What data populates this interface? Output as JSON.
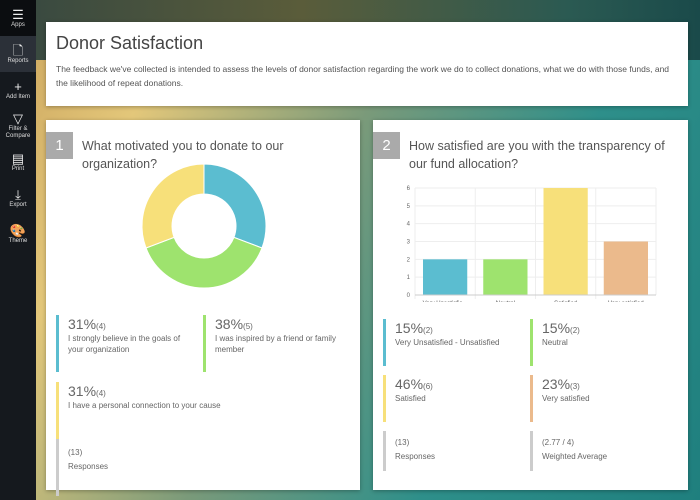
{
  "sidebar": {
    "items": [
      {
        "label": "Apps",
        "icon": "list-icon"
      },
      {
        "label": "Reports",
        "icon": "document-icon"
      },
      {
        "label": "Add Item",
        "icon": "plus-icon"
      },
      {
        "label": "Filter & Compare",
        "icon": "filter-icon"
      },
      {
        "label": "Print",
        "icon": "printer-icon"
      },
      {
        "label": "Export",
        "icon": "download-icon"
      },
      {
        "label": "Theme",
        "icon": "palette-icon"
      }
    ]
  },
  "header": {
    "title": "Donor Satisfaction",
    "description": "The feedback we've collected is intended to assess the levels of donor satisfaction regarding the work we do to collect donations, what we do with those funds, and the likelihood of repeat donations."
  },
  "q1": {
    "number": "1",
    "question": "What motivated you to donate to our organization?",
    "stats": [
      {
        "pct": "31%",
        "count": "(4)",
        "label": "I strongly believe in the goals of your organization",
        "color": "#5bbdd0"
      },
      {
        "pct": "38%",
        "count": "(5)",
        "label": "I was inspired by a friend or family member",
        "color": "#9ee36e"
      },
      {
        "pct": "31%",
        "count": "(4)",
        "label": "I have a personal connection to your cause",
        "color": "#f7e07a"
      }
    ],
    "responses": {
      "count": "(13)",
      "label": "Responses"
    }
  },
  "q2": {
    "number": "2",
    "question": "How satisfied are you with the transparency of our fund allocation?",
    "stats": [
      {
        "pct": "15%",
        "count": "(2)",
        "label": "Very Unsatisfied - Unsatisfied",
        "color": "#5bbdd0"
      },
      {
        "pct": "15%",
        "count": "(2)",
        "label": "Neutral",
        "color": "#9ee36e"
      },
      {
        "pct": "46%",
        "count": "(6)",
        "label": "Satisfied",
        "color": "#f7e07a"
      },
      {
        "pct": "23%",
        "count": "(3)",
        "label": "Very satisfied",
        "color": "#ebba8c"
      }
    ],
    "responses": {
      "count": "(13)",
      "label": "Responses"
    },
    "weighted": {
      "value": "(2.77 / 4)",
      "label": "Weighted Average"
    }
  },
  "chart_data": [
    {
      "type": "pie",
      "donut": true,
      "categories": [
        "I strongly believe in the goals of your organization",
        "I was inspired by a friend or family member",
        "I have a personal connection to your cause"
      ],
      "values": [
        4,
        5,
        4
      ],
      "colors": [
        "#5bbdd0",
        "#9ee36e",
        "#f7e07a"
      ]
    },
    {
      "type": "bar",
      "categories": [
        "Very Unsatisfie...",
        "Neutral",
        "Satisfied",
        "Very satisfied"
      ],
      "values": [
        2,
        2,
        6,
        3
      ],
      "colors": [
        "#5bbdd0",
        "#9ee36e",
        "#f7e07a",
        "#ebba8c"
      ],
      "ylim": [
        0,
        6
      ],
      "yticks": [
        "0",
        "1",
        "2",
        "3",
        "4",
        "5",
        "6"
      ],
      "grid": true
    }
  ]
}
